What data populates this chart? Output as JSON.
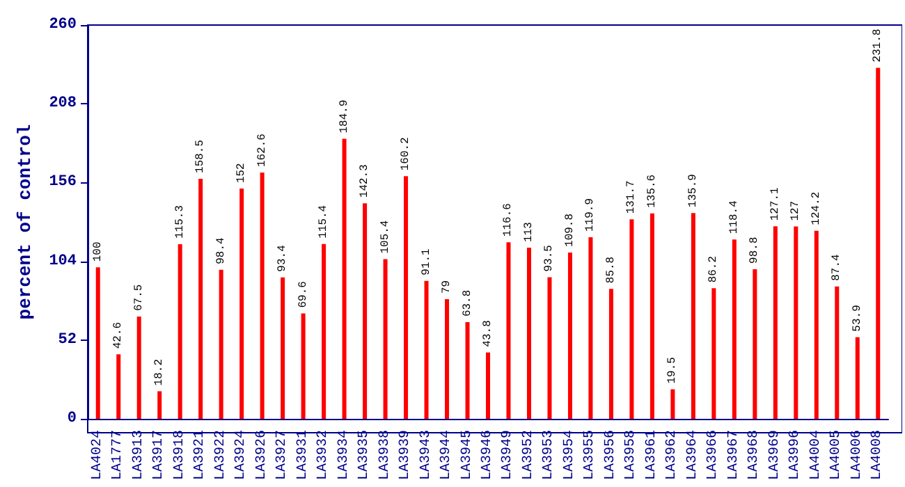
{
  "chart_data": {
    "type": "bar",
    "ylabel": "percent of control",
    "categories": [
      "LA4024",
      "LA1777",
      "LA3913",
      "LA3917",
      "LA3918",
      "LA3921",
      "LA3922",
      "LA3924",
      "LA3926",
      "LA3927",
      "LA3931",
      "LA3932",
      "LA3934",
      "LA3935",
      "LA3938",
      "LA3939",
      "LA3943",
      "LA3944",
      "LA3945",
      "LA3946",
      "LA3949",
      "LA3952",
      "LA3953",
      "LA3954",
      "LA3955",
      "LA3956",
      "LA3958",
      "LA3961",
      "LA3962",
      "LA3964",
      "LA3966",
      "LA3967",
      "LA3968",
      "LA3969",
      "LA3996",
      "LA4004",
      "LA4005",
      "LA4006",
      "LA4008"
    ],
    "values": [
      100,
      42.6,
      67.5,
      18.2,
      115.3,
      158.5,
      98.4,
      152,
      162.6,
      93.4,
      69.6,
      115.4,
      184.9,
      142.3,
      105.4,
      160.2,
      91.1,
      79,
      63.8,
      43.8,
      116.6,
      113,
      93.5,
      109.8,
      119.9,
      85.8,
      131.7,
      135.6,
      19.5,
      135.9,
      86.2,
      118.4,
      98.8,
      127.1,
      127,
      124.2,
      87.4,
      53.9,
      231.8
    ],
    "color": "#ff0000",
    "ylim": [
      0,
      260
    ],
    "yticks": [
      0,
      52,
      104,
      156,
      208,
      260
    ],
    "grid": false,
    "data_labels": true
  }
}
